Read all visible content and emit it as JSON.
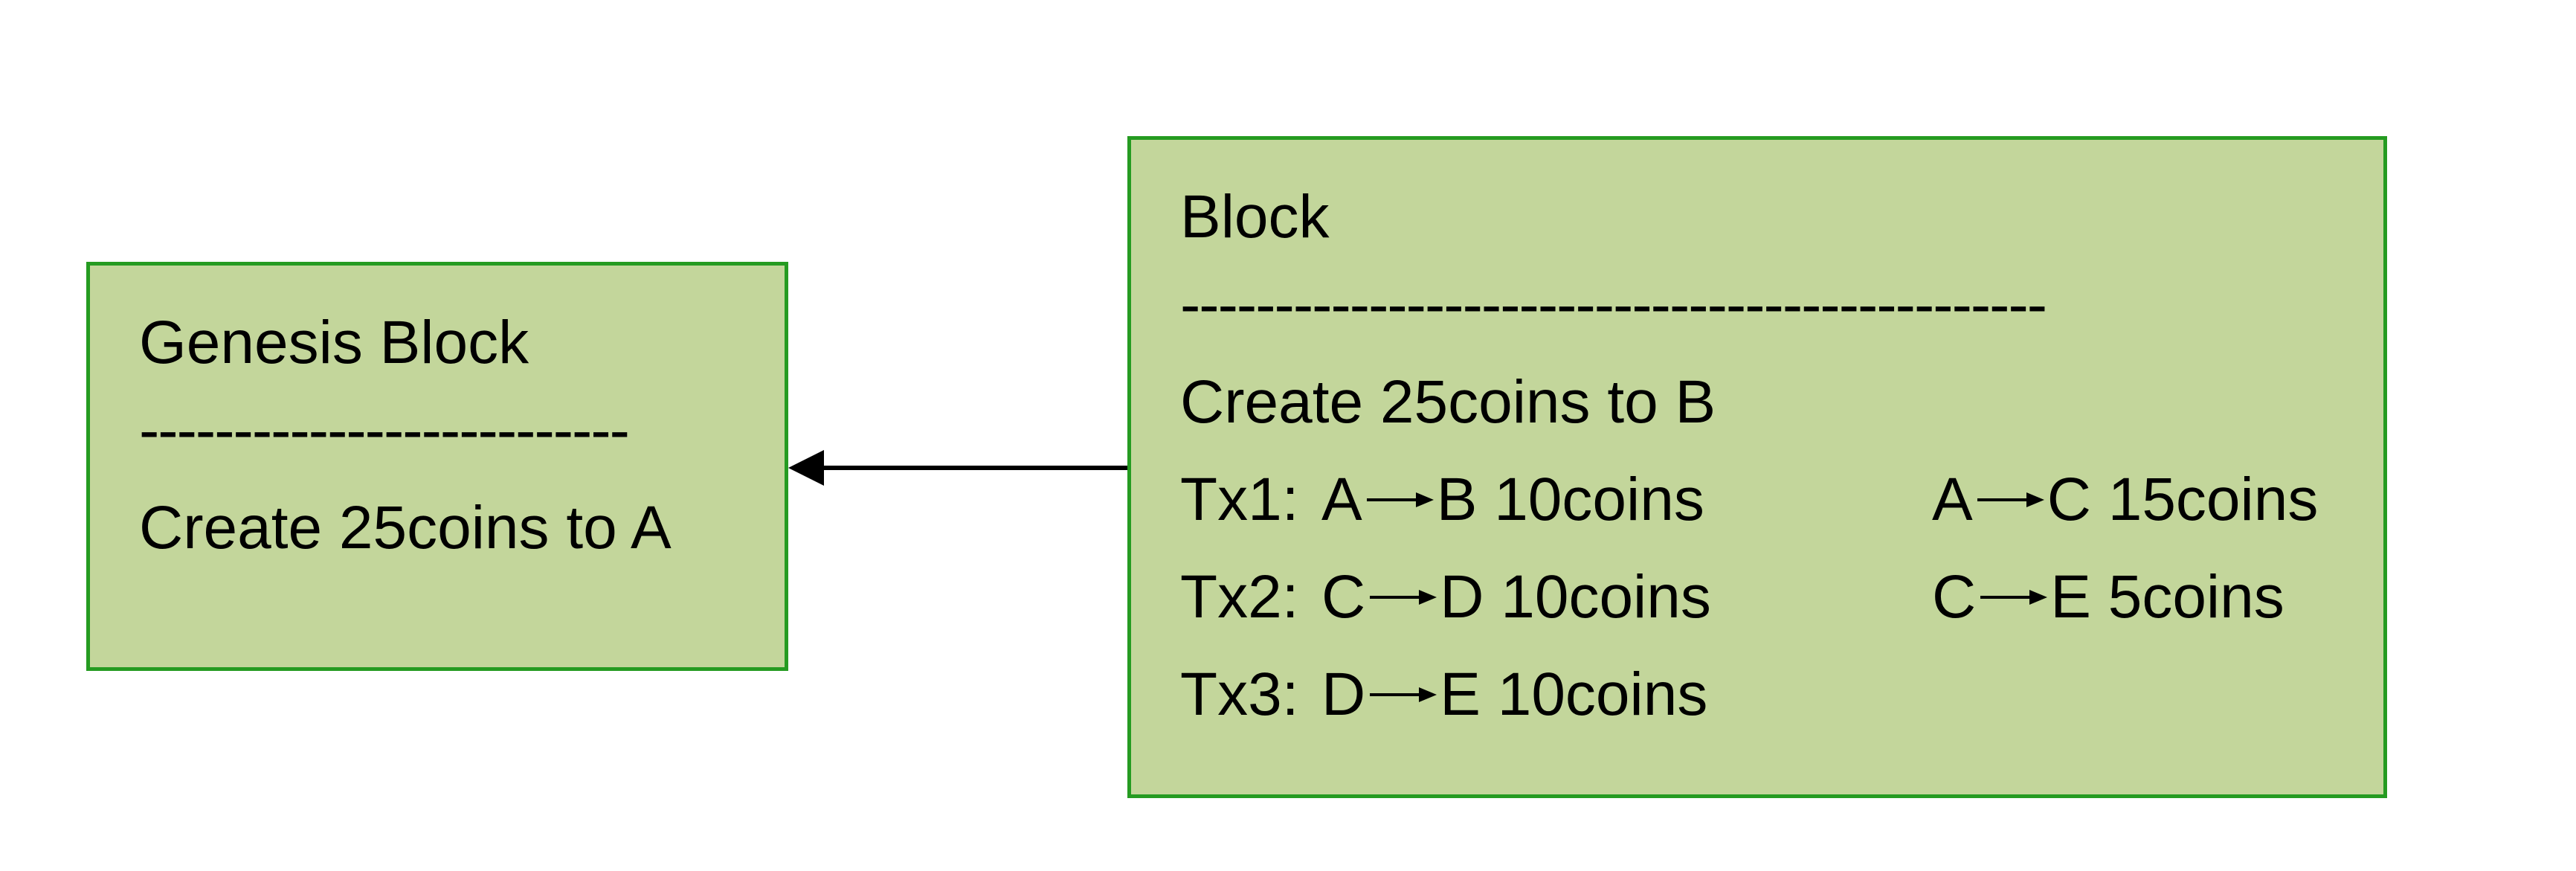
{
  "colors": {
    "block_fill": "#c3d69b",
    "block_border": "#259b21",
    "arrow": "#000000",
    "background": "#ffffff"
  },
  "genesis": {
    "title": "Genesis Block",
    "separator": "--------------------------",
    "line": "Create 25coins to A"
  },
  "block": {
    "title": "Block",
    "separator": "----------------------------------------------",
    "create_line": "Create 25coins to B",
    "transactions": [
      {
        "label": "Tx1:",
        "outputs": [
          {
            "from": "A",
            "to": "B",
            "amount": "10coins"
          },
          {
            "from": "A",
            "to": "C",
            "amount": "15coins"
          }
        ]
      },
      {
        "label": "Tx2:",
        "outputs": [
          {
            "from": "C",
            "to": "D",
            "amount": "10coins"
          },
          {
            "from": "C",
            "to": "E",
            "amount": "5coins"
          }
        ]
      },
      {
        "label": "Tx3:",
        "outputs": [
          {
            "from": "D",
            "to": "E",
            "amount": "10coins"
          }
        ]
      }
    ]
  },
  "link": {
    "from": "block",
    "to": "genesis",
    "style": "arrow"
  }
}
